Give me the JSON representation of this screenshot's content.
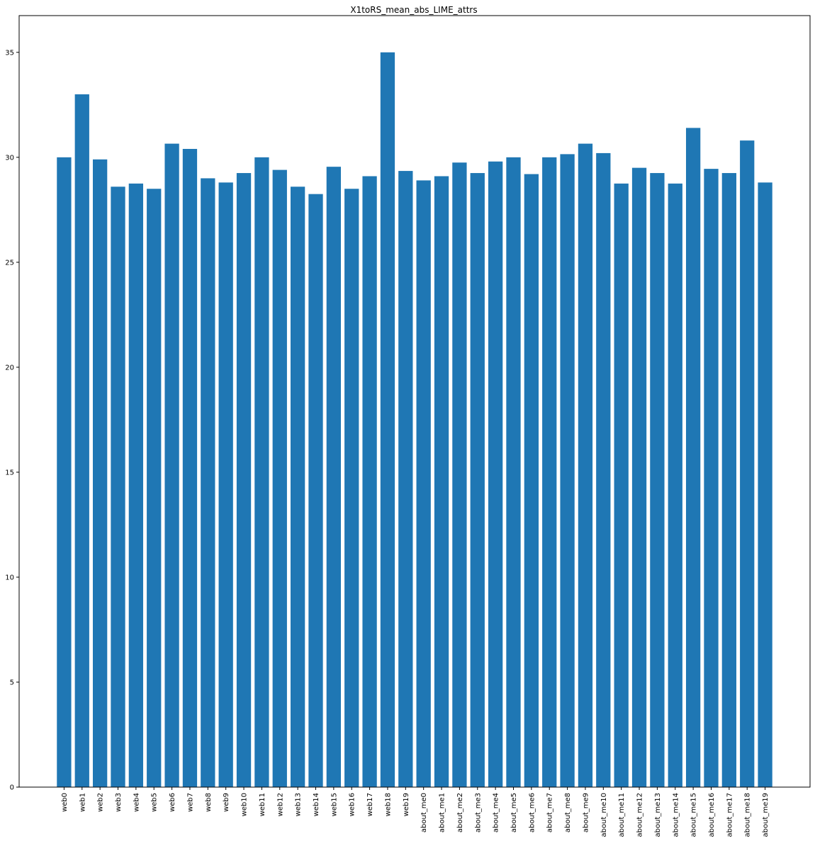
{
  "chart_data": {
    "type": "bar",
    "title": "X1toRS_mean_abs_LIME_attrs",
    "xlabel": "",
    "ylabel": "",
    "ylim": [
      0,
      36.75
    ],
    "yticks": [
      0,
      5,
      10,
      15,
      20,
      25,
      30,
      35
    ],
    "grid": false,
    "bar_color": "#1f77b4",
    "categories": [
      "web0",
      "web1",
      "web2",
      "web3",
      "web4",
      "web5",
      "web6",
      "web7",
      "web8",
      "web9",
      "web10",
      "web11",
      "web12",
      "web13",
      "web14",
      "web15",
      "web16",
      "web17",
      "web18",
      "web19",
      "about_me0",
      "about_me1",
      "about_me2",
      "about_me3",
      "about_me4",
      "about_me5",
      "about_me6",
      "about_me7",
      "about_me8",
      "about_me9",
      "about_me10",
      "about_me11",
      "about_me12",
      "about_me13",
      "about_me14",
      "about_me15",
      "about_me16",
      "about_me17",
      "about_me18",
      "about_me19"
    ],
    "values": [
      30.0,
      33.0,
      29.9,
      28.6,
      28.75,
      28.5,
      30.65,
      30.4,
      29.0,
      28.8,
      29.25,
      30.0,
      29.4,
      28.6,
      28.25,
      29.55,
      28.5,
      29.1,
      35.0,
      29.35,
      28.9,
      29.1,
      29.75,
      29.25,
      29.8,
      30.0,
      29.2,
      30.0,
      30.15,
      30.65,
      30.2,
      28.75,
      29.5,
      29.25,
      28.75,
      31.4,
      29.45,
      29.25,
      30.8,
      28.8
    ]
  }
}
